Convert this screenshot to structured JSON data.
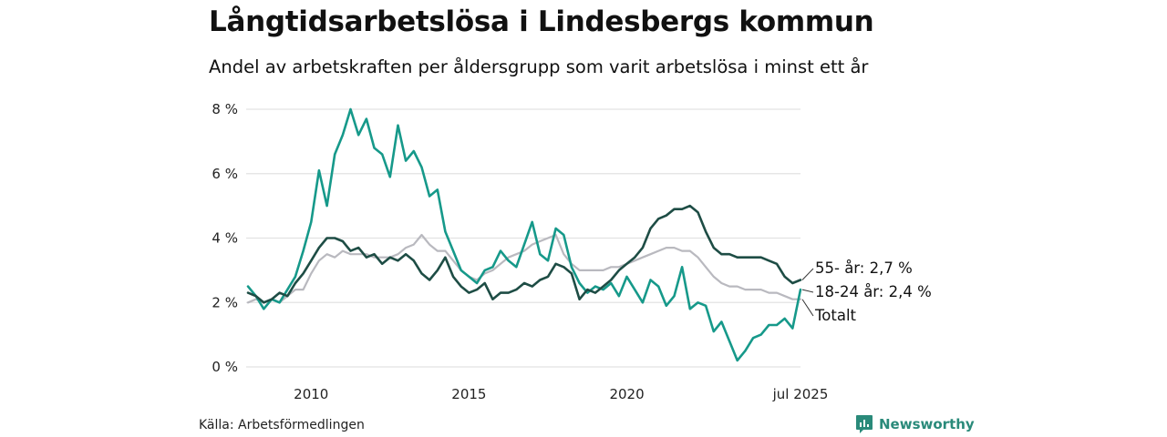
{
  "title": "Långtidsarbetslösa i Lindesbergs kommun",
  "subtitle": "Andel av arbetskraften per åldersgrupp som varit arbetslösa i minst ett år",
  "source": "Källa: Arbetsförmedlingen",
  "brand": "Newsworthy",
  "colors": {
    "age55": "#1e4d45",
    "age18_24": "#16998a",
    "total": "#b9b9bf",
    "grid": "#e2e2e2",
    "brand": "#2a8a7a"
  },
  "chart_data": {
    "type": "line",
    "x_axis": {
      "range": [
        "2008-01",
        "2025-07"
      ],
      "ticks": [
        {
          "value": "2010-01",
          "label": "2010"
        },
        {
          "value": "2015-01",
          "label": "2015"
        },
        {
          "value": "2020-01",
          "label": "2020"
        },
        {
          "value": "2025-07",
          "label": "jul 2025"
        }
      ]
    },
    "y_axis": {
      "range": [
        0,
        8
      ],
      "ticks": [
        {
          "value": 0,
          "label": "0 %"
        },
        {
          "value": 2,
          "label": "2 %"
        },
        {
          "value": 4,
          "label": "4 %"
        },
        {
          "value": 6,
          "label": "6 %"
        },
        {
          "value": 8,
          "label": "8 %"
        }
      ],
      "grid": true
    },
    "series": [
      {
        "name": "55- år",
        "end_label": "55- år: 2,7 %",
        "points": [
          [
            "2008-01",
            2.3
          ],
          [
            "2008-04",
            2.2
          ],
          [
            "2008-07",
            2.0
          ],
          [
            "2008-10",
            2.1
          ],
          [
            "2009-01",
            2.3
          ],
          [
            "2009-04",
            2.2
          ],
          [
            "2009-07",
            2.6
          ],
          [
            "2009-10",
            2.9
          ],
          [
            "2010-01",
            3.3
          ],
          [
            "2010-04",
            3.7
          ],
          [
            "2010-07",
            4.0
          ],
          [
            "2010-10",
            4.0
          ],
          [
            "2011-01",
            3.9
          ],
          [
            "2011-04",
            3.6
          ],
          [
            "2011-07",
            3.7
          ],
          [
            "2011-10",
            3.4
          ],
          [
            "2012-01",
            3.5
          ],
          [
            "2012-04",
            3.2
          ],
          [
            "2012-07",
            3.4
          ],
          [
            "2012-10",
            3.3
          ],
          [
            "2013-01",
            3.5
          ],
          [
            "2013-04",
            3.3
          ],
          [
            "2013-07",
            2.9
          ],
          [
            "2013-10",
            2.7
          ],
          [
            "2014-01",
            3.0
          ],
          [
            "2014-04",
            3.4
          ],
          [
            "2014-07",
            2.8
          ],
          [
            "2014-10",
            2.5
          ],
          [
            "2015-01",
            2.3
          ],
          [
            "2015-04",
            2.4
          ],
          [
            "2015-07",
            2.6
          ],
          [
            "2015-10",
            2.1
          ],
          [
            "2016-01",
            2.3
          ],
          [
            "2016-04",
            2.3
          ],
          [
            "2016-07",
            2.4
          ],
          [
            "2016-10",
            2.6
          ],
          [
            "2017-01",
            2.5
          ],
          [
            "2017-04",
            2.7
          ],
          [
            "2017-07",
            2.8
          ],
          [
            "2017-10",
            3.2
          ],
          [
            "2018-01",
            3.1
          ],
          [
            "2018-04",
            2.9
          ],
          [
            "2018-07",
            2.1
          ],
          [
            "2018-10",
            2.4
          ],
          [
            "2019-01",
            2.3
          ],
          [
            "2019-04",
            2.5
          ],
          [
            "2019-07",
            2.7
          ],
          [
            "2019-10",
            3.0
          ],
          [
            "2020-01",
            3.2
          ],
          [
            "2020-04",
            3.4
          ],
          [
            "2020-07",
            3.7
          ],
          [
            "2020-10",
            4.3
          ],
          [
            "2021-01",
            4.6
          ],
          [
            "2021-04",
            4.7
          ],
          [
            "2021-07",
            4.9
          ],
          [
            "2021-10",
            4.9
          ],
          [
            "2022-01",
            5.0
          ],
          [
            "2022-04",
            4.8
          ],
          [
            "2022-07",
            4.2
          ],
          [
            "2022-10",
            3.7
          ],
          [
            "2023-01",
            3.5
          ],
          [
            "2023-04",
            3.5
          ],
          [
            "2023-07",
            3.4
          ],
          [
            "2023-10",
            3.4
          ],
          [
            "2024-01",
            3.4
          ],
          [
            "2024-04",
            3.4
          ],
          [
            "2024-07",
            3.3
          ],
          [
            "2024-10",
            3.2
          ],
          [
            "2025-01",
            2.8
          ],
          [
            "2025-04",
            2.6
          ],
          [
            "2025-07",
            2.7
          ]
        ]
      },
      {
        "name": "18-24 år",
        "end_label": "18-24 år: 2,4 %",
        "points": [
          [
            "2008-01",
            2.5
          ],
          [
            "2008-04",
            2.2
          ],
          [
            "2008-07",
            1.8
          ],
          [
            "2008-10",
            2.1
          ],
          [
            "2009-01",
            2.0
          ],
          [
            "2009-04",
            2.4
          ],
          [
            "2009-07",
            2.8
          ],
          [
            "2009-10",
            3.6
          ],
          [
            "2010-01",
            4.5
          ],
          [
            "2010-04",
            6.1
          ],
          [
            "2010-07",
            5.0
          ],
          [
            "2010-10",
            6.6
          ],
          [
            "2011-01",
            7.2
          ],
          [
            "2011-04",
            8.0
          ],
          [
            "2011-07",
            7.2
          ],
          [
            "2011-10",
            7.7
          ],
          [
            "2012-01",
            6.8
          ],
          [
            "2012-04",
            6.6
          ],
          [
            "2012-07",
            5.9
          ],
          [
            "2012-10",
            7.5
          ],
          [
            "2013-01",
            6.4
          ],
          [
            "2013-04",
            6.7
          ],
          [
            "2013-07",
            6.2
          ],
          [
            "2013-10",
            5.3
          ],
          [
            "2014-01",
            5.5
          ],
          [
            "2014-04",
            4.2
          ],
          [
            "2014-07",
            3.6
          ],
          [
            "2014-10",
            3.0
          ],
          [
            "2015-01",
            2.8
          ],
          [
            "2015-04",
            2.6
          ],
          [
            "2015-07",
            3.0
          ],
          [
            "2015-10",
            3.1
          ],
          [
            "2016-01",
            3.6
          ],
          [
            "2016-04",
            3.3
          ],
          [
            "2016-07",
            3.1
          ],
          [
            "2016-10",
            3.8
          ],
          [
            "2017-01",
            4.5
          ],
          [
            "2017-04",
            3.5
          ],
          [
            "2017-07",
            3.3
          ],
          [
            "2017-10",
            4.3
          ],
          [
            "2018-01",
            4.1
          ],
          [
            "2018-04",
            3.1
          ],
          [
            "2018-07",
            2.6
          ],
          [
            "2018-10",
            2.3
          ],
          [
            "2019-01",
            2.5
          ],
          [
            "2019-04",
            2.4
          ],
          [
            "2019-07",
            2.6
          ],
          [
            "2019-10",
            2.2
          ],
          [
            "2020-01",
            2.8
          ],
          [
            "2020-04",
            2.4
          ],
          [
            "2020-07",
            2.0
          ],
          [
            "2020-10",
            2.7
          ],
          [
            "2021-01",
            2.5
          ],
          [
            "2021-04",
            1.9
          ],
          [
            "2021-07",
            2.2
          ],
          [
            "2021-10",
            3.1
          ],
          [
            "2022-01",
            1.8
          ],
          [
            "2022-04",
            2.0
          ],
          [
            "2022-07",
            1.9
          ],
          [
            "2022-10",
            1.1
          ],
          [
            "2023-01",
            1.4
          ],
          [
            "2023-04",
            0.8
          ],
          [
            "2023-07",
            0.2
          ],
          [
            "2023-10",
            0.5
          ],
          [
            "2024-01",
            0.9
          ],
          [
            "2024-04",
            1.0
          ],
          [
            "2024-07",
            1.3
          ],
          [
            "2024-10",
            1.3
          ],
          [
            "2025-01",
            1.5
          ],
          [
            "2025-04",
            1.2
          ],
          [
            "2025-07",
            2.4
          ]
        ]
      },
      {
        "name": "Totalt",
        "end_label": "Totalt",
        "points": [
          [
            "2008-01",
            2.0
          ],
          [
            "2008-04",
            2.1
          ],
          [
            "2008-07",
            2.0
          ],
          [
            "2008-10",
            2.1
          ],
          [
            "2009-01",
            2.0
          ],
          [
            "2009-04",
            2.2
          ],
          [
            "2009-07",
            2.4
          ],
          [
            "2009-10",
            2.4
          ],
          [
            "2010-01",
            2.9
          ],
          [
            "2010-04",
            3.3
          ],
          [
            "2010-07",
            3.5
          ],
          [
            "2010-10",
            3.4
          ],
          [
            "2011-01",
            3.6
          ],
          [
            "2011-04",
            3.5
          ],
          [
            "2011-07",
            3.5
          ],
          [
            "2011-10",
            3.5
          ],
          [
            "2012-01",
            3.4
          ],
          [
            "2012-04",
            3.4
          ],
          [
            "2012-07",
            3.4
          ],
          [
            "2012-10",
            3.5
          ],
          [
            "2013-01",
            3.7
          ],
          [
            "2013-04",
            3.8
          ],
          [
            "2013-07",
            4.1
          ],
          [
            "2013-10",
            3.8
          ],
          [
            "2014-01",
            3.6
          ],
          [
            "2014-04",
            3.6
          ],
          [
            "2014-07",
            3.3
          ],
          [
            "2014-10",
            3.0
          ],
          [
            "2015-01",
            2.8
          ],
          [
            "2015-04",
            2.7
          ],
          [
            "2015-07",
            2.9
          ],
          [
            "2015-10",
            3.0
          ],
          [
            "2016-01",
            3.2
          ],
          [
            "2016-04",
            3.4
          ],
          [
            "2016-07",
            3.5
          ],
          [
            "2016-10",
            3.6
          ],
          [
            "2017-01",
            3.8
          ],
          [
            "2017-04",
            3.9
          ],
          [
            "2017-07",
            4.0
          ],
          [
            "2017-10",
            4.1
          ],
          [
            "2018-01",
            3.5
          ],
          [
            "2018-04",
            3.2
          ],
          [
            "2018-07",
            3.0
          ],
          [
            "2018-10",
            3.0
          ],
          [
            "2019-01",
            3.0
          ],
          [
            "2019-04",
            3.0
          ],
          [
            "2019-07",
            3.1
          ],
          [
            "2019-10",
            3.1
          ],
          [
            "2020-01",
            3.2
          ],
          [
            "2020-04",
            3.3
          ],
          [
            "2020-07",
            3.4
          ],
          [
            "2020-10",
            3.5
          ],
          [
            "2021-01",
            3.6
          ],
          [
            "2021-04",
            3.7
          ],
          [
            "2021-07",
            3.7
          ],
          [
            "2021-10",
            3.6
          ],
          [
            "2022-01",
            3.6
          ],
          [
            "2022-04",
            3.4
          ],
          [
            "2022-07",
            3.1
          ],
          [
            "2022-10",
            2.8
          ],
          [
            "2023-01",
            2.6
          ],
          [
            "2023-04",
            2.5
          ],
          [
            "2023-07",
            2.5
          ],
          [
            "2023-10",
            2.4
          ],
          [
            "2024-01",
            2.4
          ],
          [
            "2024-04",
            2.4
          ],
          [
            "2024-07",
            2.3
          ],
          [
            "2024-10",
            2.3
          ],
          [
            "2025-01",
            2.2
          ],
          [
            "2025-04",
            2.1
          ],
          [
            "2025-07",
            2.1
          ]
        ]
      }
    ]
  }
}
